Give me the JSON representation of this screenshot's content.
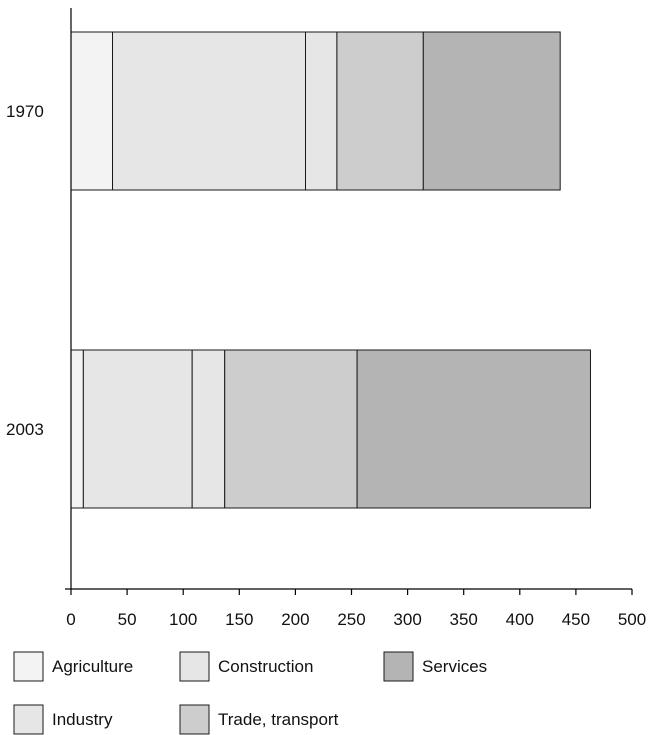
{
  "chart_data": {
    "type": "bar",
    "orientation": "horizontal",
    "stacked": true,
    "categories": [
      "1970",
      "2003"
    ],
    "series": [
      {
        "name": "Agriculture",
        "values": [
          37,
          11
        ],
        "color": "#f3f3f3"
      },
      {
        "name": "Construction",
        "values": [
          172,
          97
        ],
        "color": "#e6e6e6"
      },
      {
        "name": "Industry",
        "values": [
          28,
          29
        ],
        "color": "#e6e6e6"
      },
      {
        "name": "Trade, transport",
        "values": [
          77,
          118
        ],
        "color": "#cdcdcd"
      },
      {
        "name": "Services",
        "values": [
          122,
          208
        ],
        "color": "#b4b4b4"
      }
    ],
    "xlim": [
      0,
      500
    ],
    "x_ticks": [
      "0",
      "50",
      "100",
      "150",
      "200",
      "250",
      "300",
      "350",
      "400",
      "450",
      "500"
    ],
    "grid": false,
    "legend": {
      "placement": "bottom",
      "order": [
        "Agriculture",
        "Construction",
        "Services",
        "Industry",
        "Trade, transport"
      ]
    }
  }
}
